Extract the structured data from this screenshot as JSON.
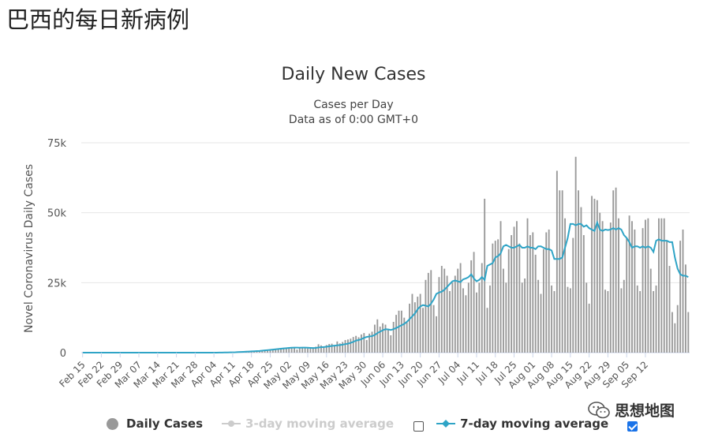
{
  "page": {
    "heading": "巴西的每日新病例"
  },
  "watermark": {
    "text": "思想地图"
  },
  "legend": {
    "daily_cases": "Daily Cases",
    "three_day": "3-day moving average",
    "seven_day": "7-day moving average",
    "three_day_checked": false,
    "seven_day_checked": true
  },
  "colors": {
    "bar": "#999999",
    "line": "#2fa4c6",
    "disabled": "#cccccc",
    "grid": "#e6e6e6"
  },
  "chart_data": {
    "type": "bar",
    "title": "Daily New Cases",
    "subtitle": "Cases per Day",
    "subtitle2": "Data as of 0:00 GMT+0",
    "xlabel": "",
    "ylabel": "Novel Coronavirus Daily Cases",
    "ylim": [
      0,
      75000
    ],
    "y_ticks": [
      0,
      25000,
      50000,
      75000
    ],
    "y_tick_labels": [
      "0",
      "25k",
      "50k",
      "75k"
    ],
    "x_tick_labels": [
      "Feb 15",
      "Feb 22",
      "Feb 29",
      "Mar 07",
      "Mar 14",
      "Mar 21",
      "Mar 28",
      "Apr 04",
      "Apr 11",
      "Apr 18",
      "Apr 25",
      "May 02",
      "May 09",
      "May 16",
      "May 23",
      "May 30",
      "Jun 06",
      "Jun 13",
      "Jun 20",
      "Jun 27",
      "Jul 04",
      "Jul 11",
      "Jul 18",
      "Jul 25",
      "Aug 01",
      "Aug 08",
      "Aug 15",
      "Aug 22",
      "Aug 29",
      "Sep 05",
      "Sep 12"
    ],
    "x_tick_step_days": 7,
    "start_date": "Feb 15",
    "series": [
      {
        "name": "Daily Cases",
        "kind": "bar",
        "values": [
          0,
          0,
          0,
          0,
          0,
          0,
          0,
          0,
          0,
          0,
          0,
          0,
          0,
          0,
          0,
          0,
          0,
          0,
          0,
          0,
          0,
          0,
          0,
          0,
          0,
          0,
          0,
          0,
          0,
          2,
          0,
          0,
          0,
          0,
          0,
          0,
          0,
          0,
          0,
          0,
          0,
          0,
          0,
          0,
          0,
          0,
          0,
          0,
          0,
          0,
          10,
          20,
          30,
          50,
          80,
          100,
          120,
          150,
          200,
          250,
          300,
          350,
          400,
          450,
          500,
          550,
          600,
          700,
          800,
          900,
          1000,
          1100,
          1200,
          1300,
          1400,
          1500,
          1600,
          1700,
          1750,
          1800,
          1100,
          1700,
          1900,
          1800,
          1500,
          1400,
          1600,
          2100,
          3000,
          2600,
          2200,
          2700,
          3100,
          3200,
          2500,
          4000,
          3300,
          3800,
          4500,
          4700,
          5000,
          5600,
          6000,
          5500,
          6500,
          7000,
          4500,
          6800,
          7500,
          10000,
          11900,
          9300,
          10500,
          10000,
          8500,
          6200,
          11000,
          13500,
          15000,
          15000,
          12500,
          10800,
          17500,
          21000,
          18000,
          20000,
          21000,
          16000,
          26000,
          28500,
          29500,
          17000,
          13000,
          27000,
          31000,
          30000,
          27500,
          22000,
          25000,
          27500,
          30000,
          32000,
          23000,
          20500,
          25000,
          33000,
          36000,
          21500,
          25000,
          32000,
          55000,
          16000,
          24000,
          39000,
          40000,
          40500,
          47000,
          30000,
          25000,
          37000,
          42000,
          45000,
          47000,
          39000,
          25000,
          26500,
          48000,
          42000,
          43000,
          35000,
          26000,
          21000,
          37000,
          43000,
          44000,
          24000,
          22000,
          65000,
          58000,
          58000,
          48000,
          23500,
          23000,
          41000,
          70000,
          58000,
          52000,
          42000,
          25000,
          17500,
          56000,
          55000,
          54500,
          50000,
          47000,
          22500,
          22000,
          46500,
          58000,
          59000,
          48000,
          23000,
          26000,
          41000,
          49000,
          47000,
          44000,
          24000,
          22000,
          44500,
          47500,
          48000,
          30000,
          22000,
          24000,
          48000,
          48000,
          48000,
          40000,
          31000,
          14500,
          10500,
          17000,
          40000,
          44000,
          31500,
          14500
        ]
      },
      {
        "name": "7-day moving average",
        "kind": "line",
        "values": [
          0,
          0,
          0,
          0,
          0,
          0,
          0,
          0,
          0,
          0,
          0,
          0,
          0,
          0,
          0,
          0,
          0,
          0,
          0,
          0,
          0,
          0,
          0,
          0,
          0,
          0,
          0,
          0,
          0,
          0,
          0,
          0,
          0,
          0,
          0,
          0,
          0,
          0,
          0,
          0,
          0,
          0,
          0,
          0,
          0,
          0,
          0,
          0,
          0,
          0,
          10,
          20,
          35,
          55,
          80,
          100,
          120,
          150,
          200,
          250,
          300,
          350,
          400,
          450,
          500,
          550,
          600,
          700,
          800,
          900,
          1000,
          1100,
          1200,
          1300,
          1400,
          1500,
          1600,
          1700,
          1750,
          1800,
          1800,
          1750,
          1800,
          1800,
          1750,
          1700,
          1650,
          1700,
          1850,
          1950,
          2000,
          2100,
          2250,
          2400,
          2500,
          2600,
          2700,
          2850,
          3050,
          3200,
          3500,
          3850,
          4300,
          4500,
          4800,
          5300,
          5600,
          5800,
          5900,
          6300,
          7000,
          7500,
          8000,
          8400,
          8300,
          8100,
          8400,
          8800,
          9300,
          9800,
          10300,
          11000,
          12000,
          13000,
          14000,
          15500,
          16500,
          17000,
          16800,
          16500,
          17500,
          19000,
          21000,
          21500,
          21800,
          22500,
          23500,
          24500,
          25500,
          25800,
          25500,
          25200,
          26200,
          26500,
          27000,
          28000,
          26500,
          25500,
          26000,
          27000,
          26000,
          31000,
          31500,
          32000,
          34000,
          34500,
          35500,
          38000,
          38500,
          38000,
          37500,
          37500,
          38000,
          38500,
          37500,
          37500,
          38000,
          37500,
          37500,
          37000,
          38000,
          38000,
          37500,
          37000,
          37000,
          36500,
          33500,
          33500,
          33500,
          34000,
          37500,
          41000,
          46000,
          46000,
          45500,
          46000,
          46000,
          45000,
          45500,
          44500,
          44000,
          43500,
          46500,
          44000,
          43500,
          44000,
          43800,
          44000,
          44500,
          44000,
          44500,
          44000,
          42000,
          41000,
          39500,
          37500,
          38000,
          38000,
          37500,
          38000,
          37500,
          38000,
          37500,
          36000,
          40000,
          40500,
          40000,
          40000,
          40000,
          39500,
          39500,
          34000,
          30000,
          28000,
          27500,
          27500,
          27000
        ]
      }
    ]
  }
}
